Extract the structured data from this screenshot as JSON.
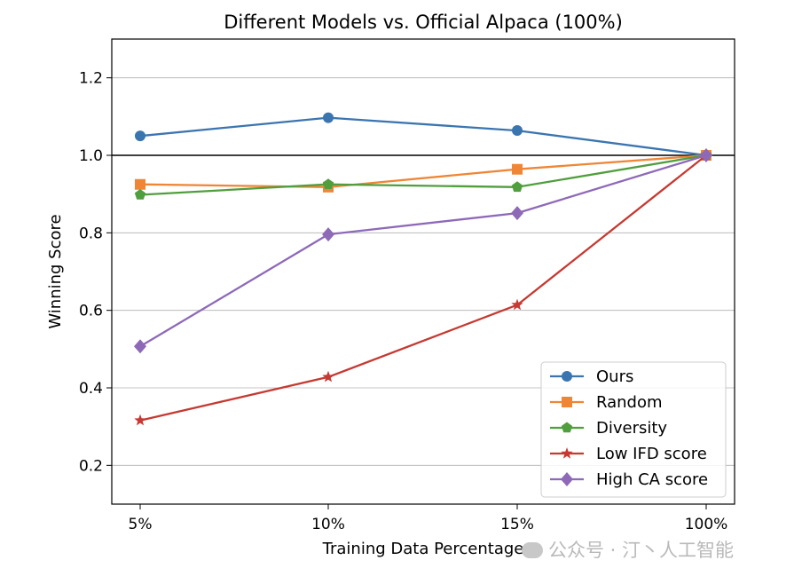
{
  "chart_data": {
    "type": "line",
    "title": "Different Models vs. Official Alpaca (100%)",
    "xlabel": "Training Data Percentage",
    "ylabel": "Winning Score",
    "categories": [
      "5%",
      "10%",
      "15%",
      "100%"
    ],
    "ylim": [
      0.1,
      1.3
    ],
    "yticks": [
      0.2,
      0.4,
      0.6,
      0.8,
      1.0,
      1.2
    ],
    "ytick_labels": [
      "0.2",
      "0.4",
      "0.6",
      "0.8",
      "1.0",
      "1.2"
    ],
    "grid": "horizontal",
    "reference_line": 1.0,
    "legend_position": "lower-right",
    "series": [
      {
        "name": "Ours",
        "values": [
          1.05,
          1.097,
          1.064,
          1.0
        ],
        "color": "#3b75af",
        "marker": "circle"
      },
      {
        "name": "Random",
        "values": [
          0.925,
          0.918,
          0.964,
          1.0
        ],
        "color": "#ef8636",
        "marker": "square"
      },
      {
        "name": "Diversity",
        "values": [
          0.898,
          0.925,
          0.918,
          1.0
        ],
        "color": "#519e3e",
        "marker": "pentagon"
      },
      {
        "name": "Low IFD score",
        "values": [
          0.316,
          0.428,
          0.614,
          1.0
        ],
        "color": "#c53a32",
        "marker": "star"
      },
      {
        "name": "High CA score",
        "values": [
          0.507,
          0.796,
          0.851,
          1.0
        ],
        "color": "#8d69b8",
        "marker": "diamond"
      }
    ]
  },
  "watermark": {
    "text": "公众号 · 汀丶人工智能",
    "icon": "wechat-icon"
  }
}
